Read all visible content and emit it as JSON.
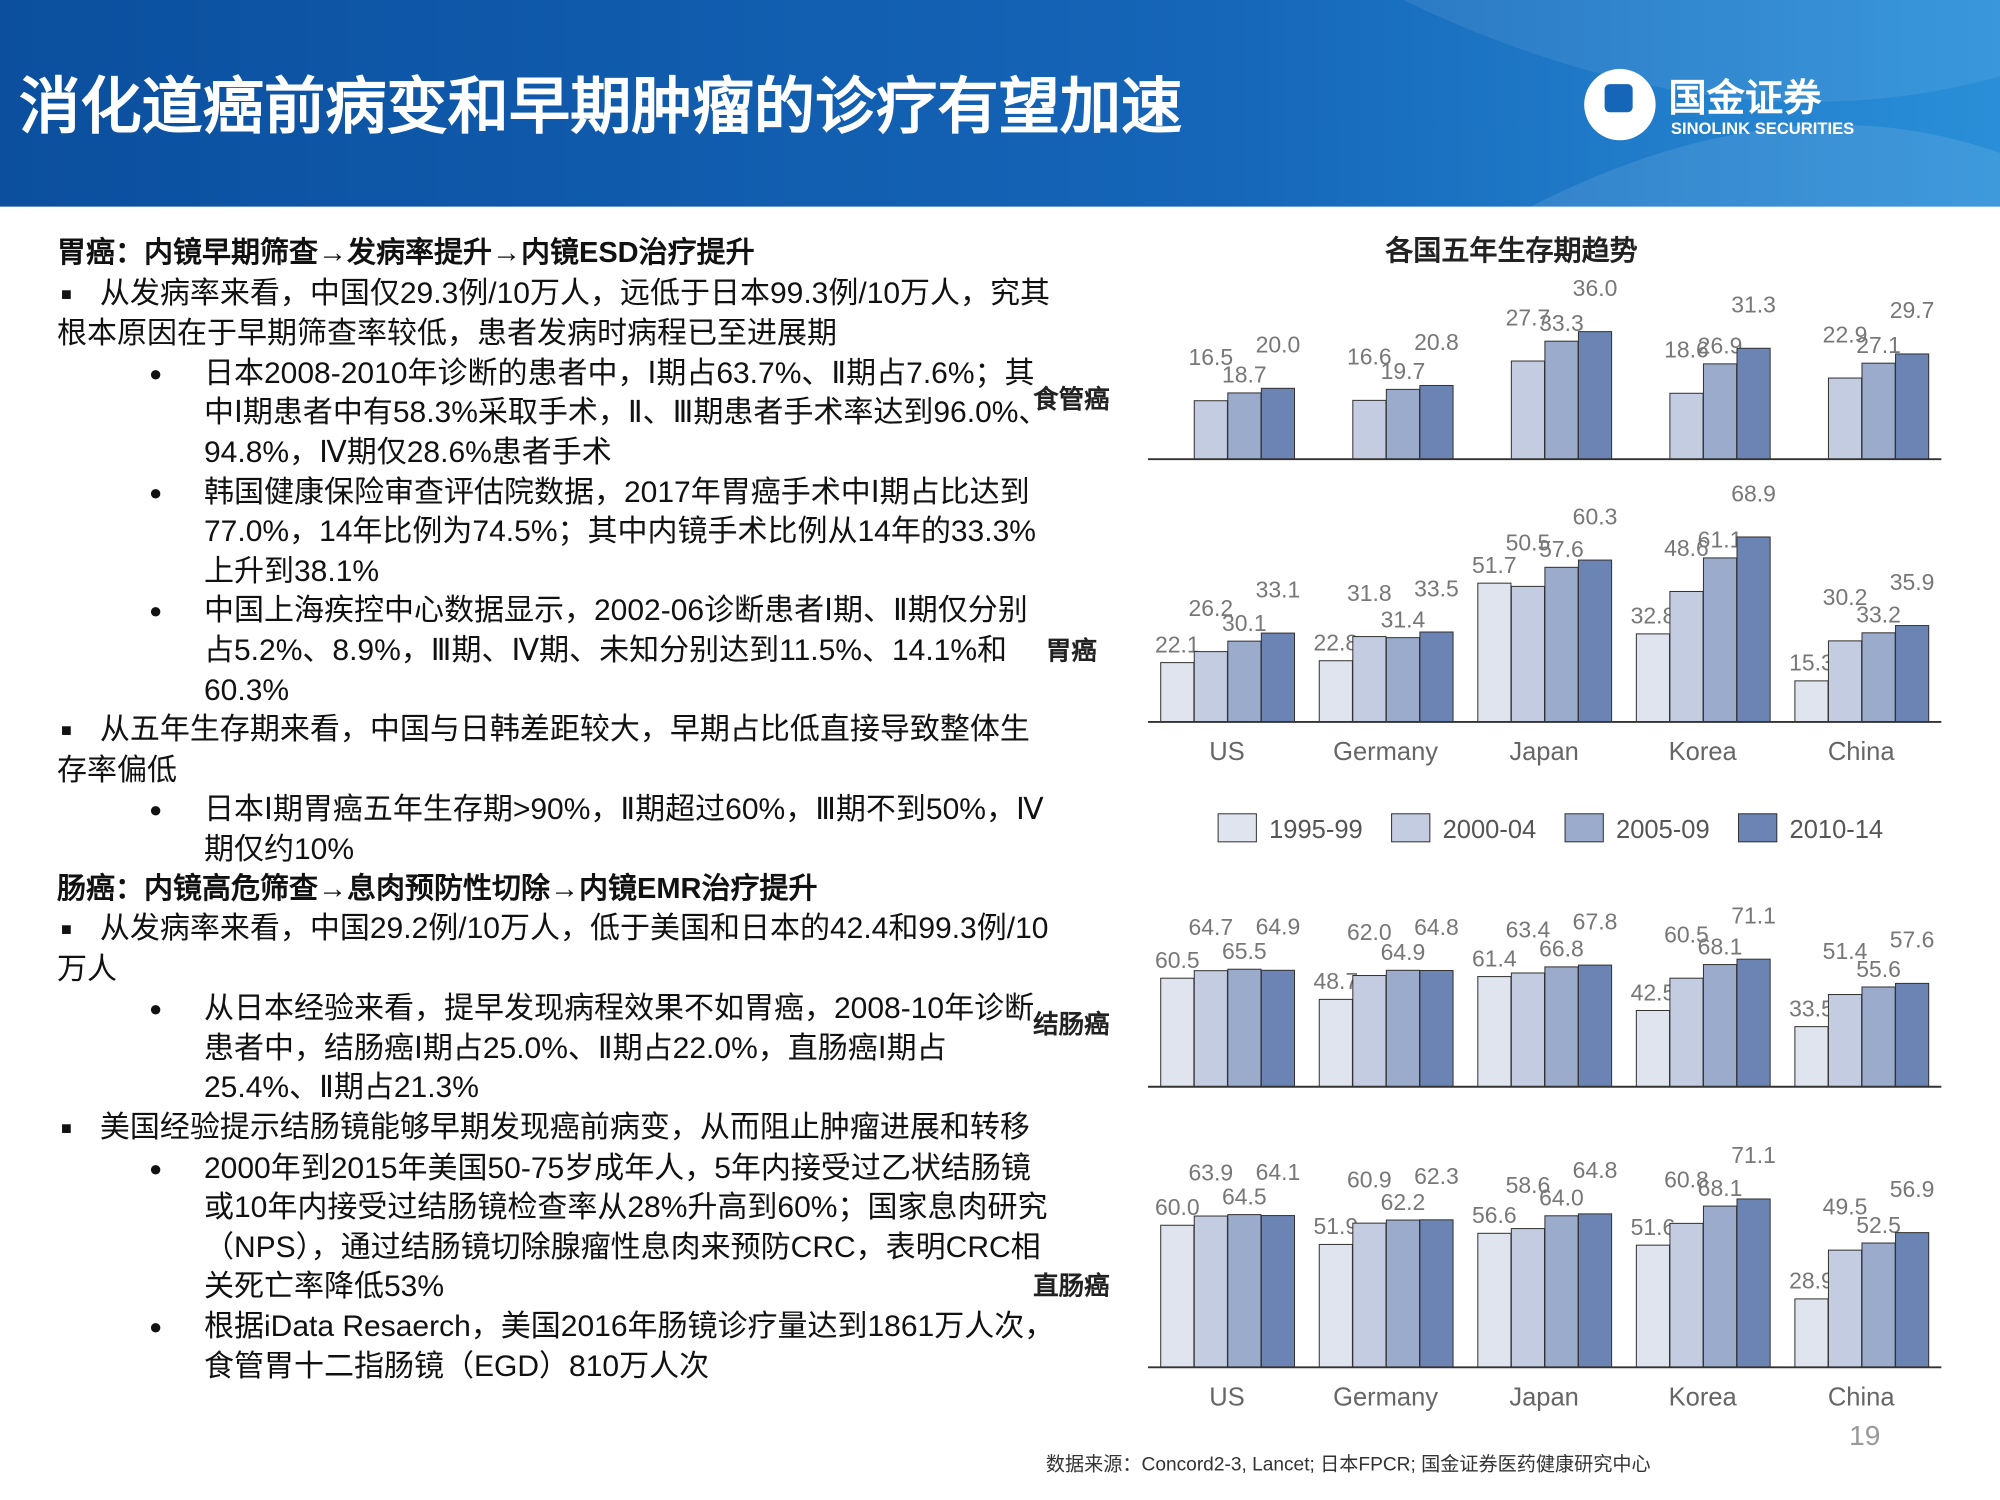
{
  "header": {
    "title": "消化道癌前病变和早期肿瘤的诊疗有望加速",
    "logo_name": "国金证券",
    "logo_en": "SINOLINK SECURITIES"
  },
  "body": [
    {
      "style": "heading",
      "text": "胃癌：内镜早期筛查→发病率提升→内镜ESD治疗提升"
    },
    {
      "style": "square",
      "text": "从发病率来看，中国仅29.3例/10万人，远低于日本99.3例/10万人，究其根本原因在于早期筛查率较低，患者发病时病程已至进展期"
    },
    {
      "style": "bullet",
      "text": "日本2008-2010年诊断的患者中，Ⅰ期占63.7%、Ⅱ期占7.6%；其中Ⅰ期患者中有58.3%采取手术，Ⅱ、Ⅲ期患者手术率达到96.0%、94.8%，Ⅳ期仅28.6%患者手术"
    },
    {
      "style": "bullet",
      "text": "韩国健康保险审查评估院数据，2017年胃癌手术中Ⅰ期占比达到77.0%，14年比例为74.5%；其中内镜手术比例从14年的33.3%上升到38.1%"
    },
    {
      "style": "bullet",
      "text": "中国上海疾控中心数据显示，2002-06诊断患者Ⅰ期、Ⅱ期仅分别占5.2%、8.9%，Ⅲ期、Ⅳ期、未知分别达到11.5%、14.1%和60.3%"
    },
    {
      "style": "square",
      "text": "从五年生存期来看，中国与日韩差距较大，早期占比低直接导致整体生存率偏低"
    },
    {
      "style": "bullet",
      "text": "日本Ⅰ期胃癌五年生存期>90%，Ⅱ期超过60%，Ⅲ期不到50%，Ⅳ期仅约10%"
    },
    {
      "style": "heading",
      "text": "肠癌：内镜高危筛查→息肉预防性切除→内镜EMR治疗提升"
    },
    {
      "style": "square",
      "text": "从发病率来看，中国29.2例/10万人，低于美国和日本的42.4和99.3例/10万人"
    },
    {
      "style": "bullet",
      "text": "从日本经验来看，提早发现病程效果不如胃癌，2008-10年诊断患者中，结肠癌Ⅰ期占25.0%、Ⅱ期占22.0%，直肠癌Ⅰ期占25.4%、Ⅱ期占21.3%"
    },
    {
      "style": "square",
      "text": "美国经验提示结肠镜能够早期发现癌前病变，从而阻止肿瘤进展和转移"
    },
    {
      "style": "bullet",
      "text": "2000年到2015年美国50-75岁成年人，5年内接受过乙状结肠镜或10年内接受过结肠镜检查率从28%升高到60%；国家息肉研究（NPS），通过结肠镜切除腺瘤性息肉来预防CRC，表明CRC相关死亡率降低53%"
    },
    {
      "style": "bullet",
      "text": "根据iData Resaerch，美国2016年肠镜诊疗量达到1861万人次，食管胃十二指肠镜（EGD）810万人次"
    }
  ],
  "chart_panel": {
    "title": "各国五年生存期趋势",
    "legend": [
      {
        "name": "1995-99",
        "color": "#dfe4ee"
      },
      {
        "name": "2000-04",
        "color": "#c3cce0"
      },
      {
        "name": "2005-09",
        "color": "#9aabcc"
      },
      {
        "name": "2010-14",
        "color": "#6b84b3"
      }
    ],
    "source": "数据来源：Concord2-3, Lancet; 日本FPCR; 国金证券医药健康研究中心",
    "page": "19"
  },
  "chart_data": [
    {
      "type": "bar",
      "title": "食管癌",
      "series": [
        {
          "values": [
            null,
            null,
            null,
            null,
            null
          ],
          "value_labels": [
            null,
            null,
            null,
            null,
            null
          ]
        },
        {
          "values": [
            16.5,
            16.6,
            27.7,
            18.6,
            22.9
          ],
          "value_labels": [
            "16.5",
            "16.6",
            "27.7",
            "18.6",
            "22.9"
          ]
        },
        {
          "values": [
            18.7,
            19.7,
            33.3,
            26.9,
            27.1
          ],
          "value_labels": [
            "18.7",
            "19.7",
            "33.3",
            "26.9",
            "27.1"
          ]
        },
        {
          "values": [
            20.0,
            20.8,
            36.0,
            31.3,
            29.7
          ],
          "value_labels": [
            "20.0",
            "20.8",
            "36.0",
            "31.3",
            "29.7"
          ]
        }
      ]
    },
    {
      "type": "bar",
      "title": "胃癌",
      "categories": [
        "US",
        "Germany",
        "Japan",
        "Korea",
        "China"
      ],
      "series": [
        {
          "values": [
            22.1,
            22.8,
            51.7,
            32.8,
            15.3
          ],
          "value_labels": [
            "22.1",
            "22.8",
            "51.7",
            "32.8",
            "15.3"
          ]
        },
        {
          "values": [
            26.2,
            31.8,
            50.5,
            48.6,
            30.2
          ],
          "value_labels": [
            "26.2",
            "31.8",
            "50.5",
            "48.6",
            "30.2"
          ]
        },
        {
          "values": [
            30.1,
            31.4,
            57.6,
            61.1,
            33.2
          ],
          "value_labels": [
            "30.1",
            "31.4",
            "57.6",
            "61.1",
            "33.2"
          ]
        },
        {
          "values": [
            33.1,
            33.5,
            60.3,
            68.9,
            35.9
          ],
          "value_labels": [
            "33.1",
            "33.5",
            "60.3",
            "68.9",
            "35.9"
          ]
        }
      ]
    },
    {
      "type": "bar",
      "title": "结肠癌",
      "series": [
        {
          "values": [
            60.5,
            48.7,
            61.4,
            42.5,
            33.5
          ],
          "value_labels": [
            "60.5",
            "48.7",
            "61.4",
            "42.5",
            "33.5"
          ]
        },
        {
          "values": [
            64.7,
            62.0,
            63.4,
            60.5,
            51.4
          ],
          "value_labels": [
            "64.7",
            "62.0",
            "63.4",
            "60.5",
            "51.4"
          ]
        },
        {
          "values": [
            65.5,
            64.9,
            66.8,
            68.1,
            55.6
          ],
          "value_labels": [
            "65.5",
            "64.9",
            "66.8",
            "68.1",
            "55.6"
          ]
        },
        {
          "values": [
            64.9,
            64.8,
            67.8,
            71.1,
            57.6
          ],
          "value_labels": [
            "64.9",
            "64.8",
            "67.8",
            "71.1",
            "57.6"
          ]
        }
      ]
    },
    {
      "type": "bar",
      "title": "直肠癌",
      "categories": [
        "US",
        "Germany",
        "Japan",
        "Korea",
        "China"
      ],
      "series": [
        {
          "values": [
            60.0,
            51.9,
            56.6,
            51.6,
            28.9
          ],
          "value_labels": [
            "60.0",
            "51.9",
            "56.6",
            "51.6",
            "28.9"
          ]
        },
        {
          "values": [
            63.9,
            60.9,
            58.6,
            60.8,
            49.5
          ],
          "value_labels": [
            "63.9",
            "60.9",
            "58.6",
            "60.8",
            "49.5"
          ]
        },
        {
          "values": [
            64.5,
            62.2,
            64.0,
            68.1,
            52.5
          ],
          "value_labels": [
            "64.5",
            "62.2",
            "64.0",
            "68.1",
            "52.5"
          ]
        },
        {
          "values": [
            64.1,
            62.3,
            64.8,
            71.1,
            56.9
          ],
          "value_labels": [
            "64.1",
            "62.3",
            "64.8",
            "71.1",
            "56.9"
          ]
        }
      ]
    }
  ]
}
